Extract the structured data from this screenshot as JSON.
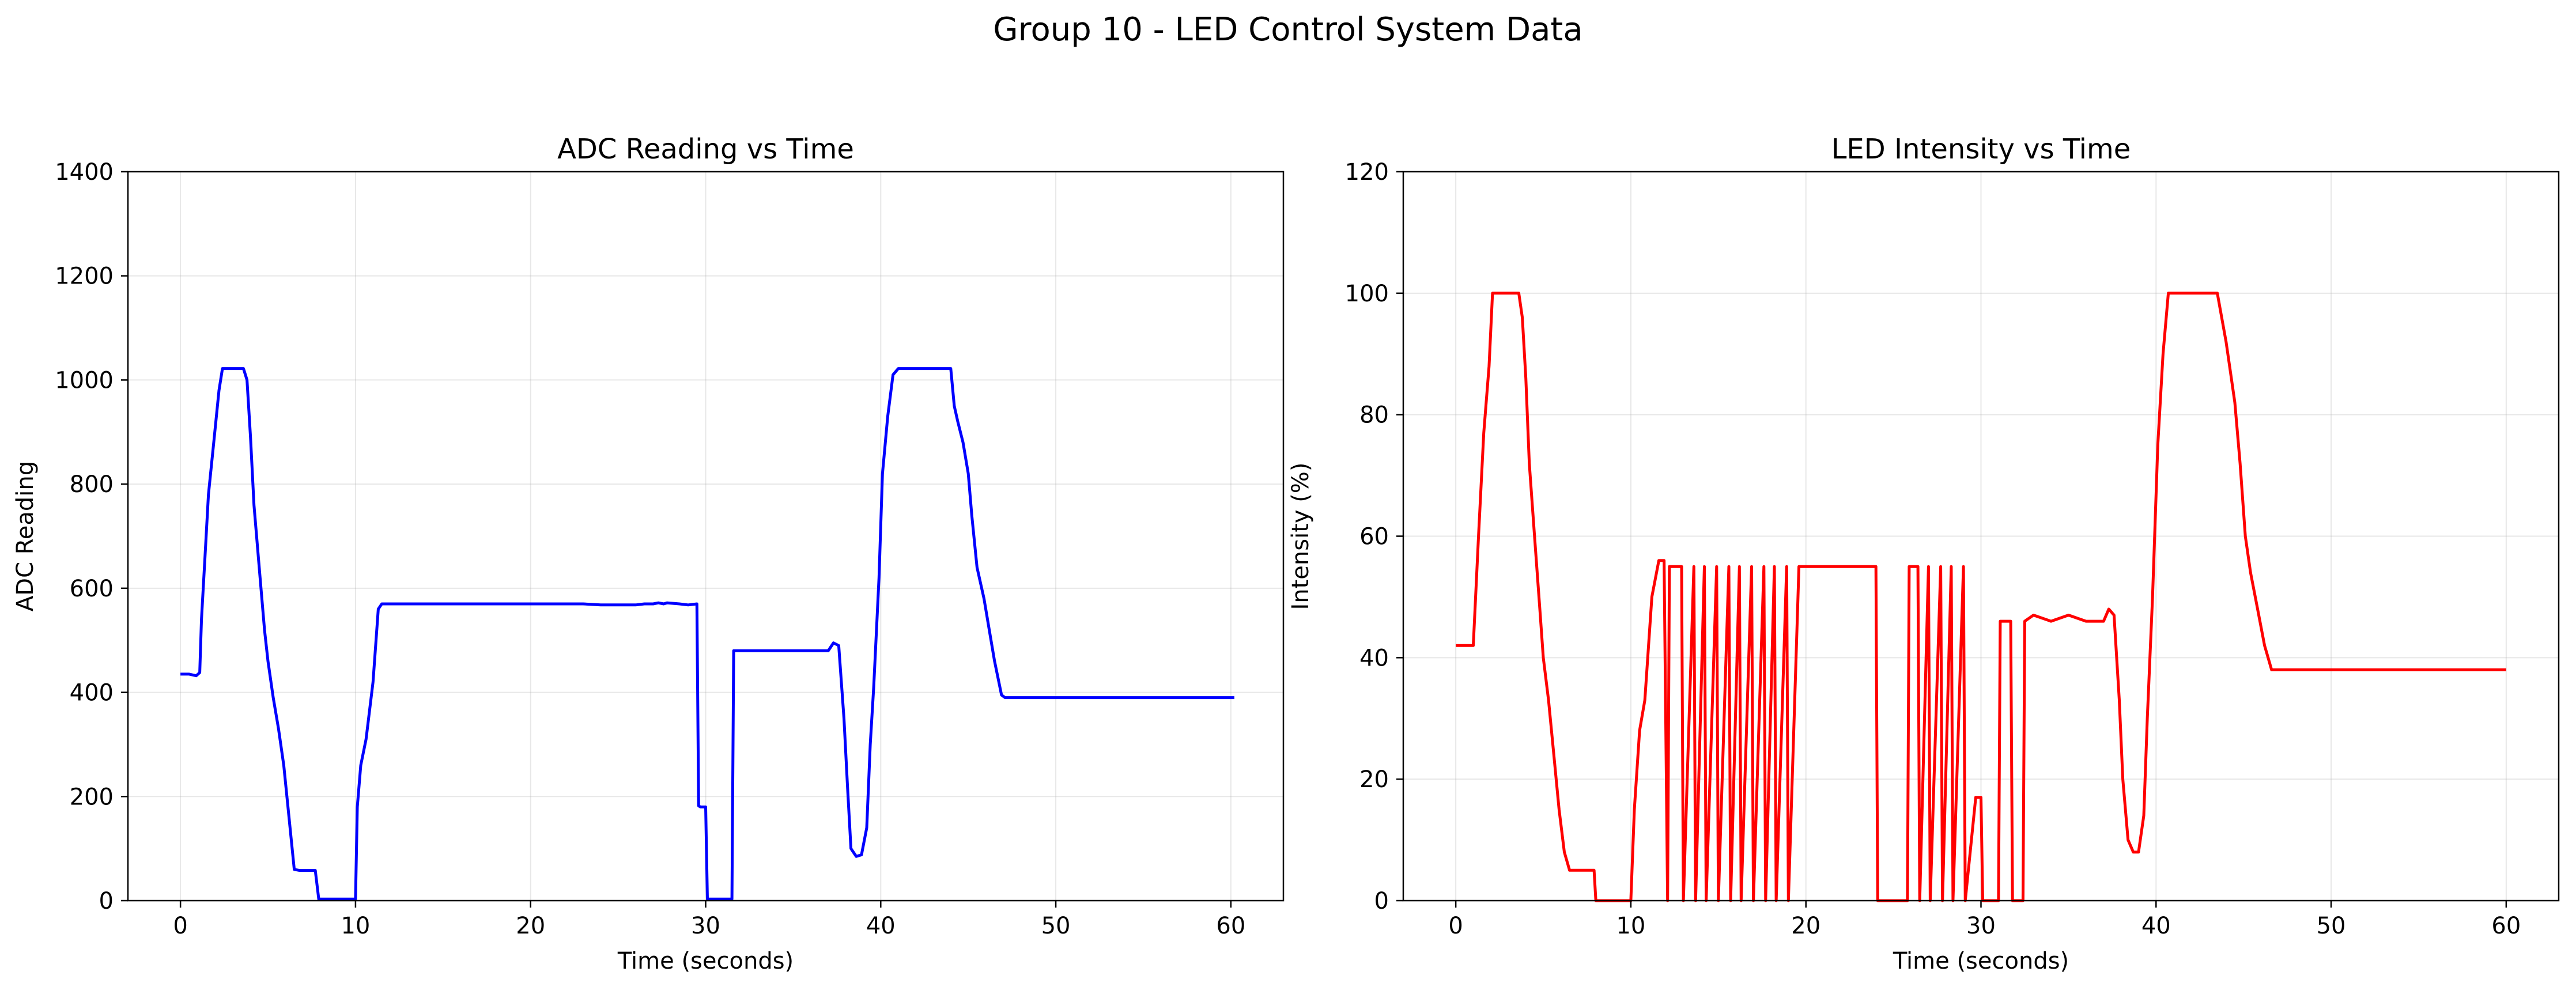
{
  "figure_title": "Group 10 - LED Control System Data",
  "chart_data": [
    {
      "type": "line",
      "title": "ADC Reading vs Time",
      "xlabel": "Time (seconds)",
      "ylabel": "ADC Reading",
      "xlim": [
        -3,
        63
      ],
      "ylim": [
        0,
        1400
      ],
      "xticks": [
        0,
        10,
        20,
        30,
        40,
        50,
        60
      ],
      "yticks": [
        0,
        200,
        400,
        600,
        800,
        1000,
        1200,
        1400
      ],
      "grid": true,
      "color": "#0000ff",
      "x": [
        0,
        0.5,
        0.9,
        1.1,
        1.2,
        1.4,
        1.6,
        1.9,
        2.2,
        2.4,
        3.0,
        3.6,
        3.8,
        4.0,
        4.2,
        4.5,
        4.8,
        5.0,
        5.3,
        5.6,
        5.9,
        6.2,
        6.5,
        6.8,
        7.0,
        7.5,
        7.7,
        7.9,
        8.2,
        9.0,
        10.0,
        10.1,
        10.3,
        10.6,
        11.0,
        11.3,
        11.5,
        11.9,
        12.2,
        13,
        14,
        15,
        16,
        17,
        18,
        19,
        20,
        21,
        22,
        23,
        24,
        25,
        26,
        26.5,
        27,
        27.3,
        27.6,
        27.8,
        28.5,
        29.0,
        29.5,
        29.6,
        29.7,
        30.0,
        30.1,
        31.5,
        31.6,
        32,
        33,
        34,
        35,
        36,
        37,
        37.3,
        37.6,
        37.9,
        38.1,
        38.3,
        38.6,
        38.9,
        39.2,
        39.4,
        39.6,
        39.9,
        40.1,
        40.4,
        40.7,
        41.0,
        41.3,
        41.5,
        42.5,
        43.5,
        44.0,
        44.2,
        44.4,
        44.7,
        45.0,
        45.2,
        45.5,
        45.9,
        46.2,
        46.5,
        46.9,
        47.1,
        47.5,
        48,
        50,
        52,
        54,
        56,
        58,
        60,
        60.2
      ],
      "y": [
        435,
        435,
        432,
        438,
        540,
        660,
        780,
        880,
        980,
        1022,
        1022,
        1022,
        1000,
        890,
        760,
        640,
        520,
        460,
        390,
        330,
        260,
        160,
        60,
        58,
        58,
        58,
        58,
        3,
        3,
        3,
        3,
        180,
        260,
        310,
        420,
        560,
        570,
        570,
        570,
        570,
        570,
        570,
        570,
        570,
        570,
        570,
        570,
        570,
        570,
        570,
        568,
        568,
        568,
        570,
        570,
        572,
        570,
        572,
        570,
        568,
        570,
        182,
        180,
        180,
        3,
        3,
        480,
        480,
        480,
        480,
        480,
        480,
        480,
        495,
        490,
        350,
        220,
        100,
        85,
        88,
        140,
        300,
        410,
        620,
        820,
        930,
        1010,
        1022,
        1022,
        1022,
        1022,
        1022,
        1022,
        950,
        920,
        880,
        820,
        740,
        640,
        580,
        520,
        460,
        395,
        390,
        390,
        390,
        390,
        390,
        390,
        390,
        390,
        390,
        390
      ]
    },
    {
      "type": "line",
      "title": "LED Intensity vs Time",
      "xlabel": "Time (seconds)",
      "ylabel": "Intensity (%)",
      "xlim": [
        -3,
        63
      ],
      "ylim": [
        0,
        120
      ],
      "xticks": [
        0,
        10,
        20,
        30,
        40,
        50,
        60
      ],
      "yticks": [
        0,
        20,
        40,
        60,
        80,
        100,
        120
      ],
      "grid": true,
      "color": "#ff0000",
      "x": [
        0,
        0.8,
        1.0,
        1.3,
        1.6,
        1.9,
        2.1,
        2.3,
        3.6,
        3.8,
        4.0,
        4.2,
        4.5,
        4.8,
        5.0,
        5.3,
        5.6,
        5.9,
        6.2,
        6.5,
        7.0,
        7.5,
        7.9,
        8.0,
        10.0,
        10.2,
        10.5,
        10.8,
        11.2,
        11.6,
        11.9,
        12.1,
        12.2,
        12.9,
        13.0,
        13.6,
        13.7,
        14.2,
        14.3,
        14.9,
        15.0,
        15.6,
        15.7,
        16.2,
        16.3,
        16.9,
        17.0,
        17.6,
        17.7,
        18.2,
        18.3,
        18.9,
        19.0,
        19.6,
        19.7,
        24.0,
        24.1,
        25.8,
        25.9,
        26.4,
        26.5,
        27.0,
        27.1,
        27.7,
        27.8,
        28.3,
        28.4,
        29.0,
        29.1,
        29.7,
        29.8,
        30.0,
        30.1,
        31.0,
        31.1,
        31.7,
        31.8,
        32.4,
        32.5,
        33,
        34,
        35,
        36,
        37,
        37.3,
        37.6,
        37.9,
        38.1,
        38.4,
        38.7,
        39.0,
        39.3,
        39.5,
        39.8,
        40.1,
        40.4,
        40.7,
        41.0,
        41.3,
        42.5,
        43.5,
        44.0,
        44.2,
        44.5,
        44.8,
        45.1,
        45.4,
        45.8,
        46.2,
        46.6,
        46.9,
        47.1,
        48,
        50,
        52,
        54,
        56,
        58,
        60
      ],
      "y": [
        42,
        42,
        42,
        60,
        77,
        88,
        100,
        100,
        100,
        96,
        86,
        72,
        60,
        48,
        40,
        33,
        24,
        15,
        8,
        5,
        5,
        5,
        5,
        0,
        0,
        15,
        28,
        33,
        50,
        56,
        56,
        0,
        55,
        55,
        0,
        55,
        0,
        55,
        0,
        55,
        0,
        55,
        0,
        55,
        0,
        55,
        0,
        55,
        0,
        55,
        0,
        55,
        0,
        55,
        55,
        55,
        0,
        0,
        55,
        55,
        0,
        55,
        0,
        55,
        0,
        55,
        0,
        55,
        0,
        17,
        17,
        17,
        0,
        0,
        46,
        46,
        0,
        0,
        46,
        47,
        46,
        47,
        46,
        46,
        48,
        47,
        33,
        20,
        10,
        8,
        8,
        14,
        30,
        50,
        75,
        90,
        100,
        100,
        100,
        100,
        100,
        92,
        88,
        82,
        72,
        60,
        54,
        48,
        42,
        38,
        38,
        38,
        38,
        38,
        38,
        38,
        38,
        38,
        38
      ]
    }
  ]
}
